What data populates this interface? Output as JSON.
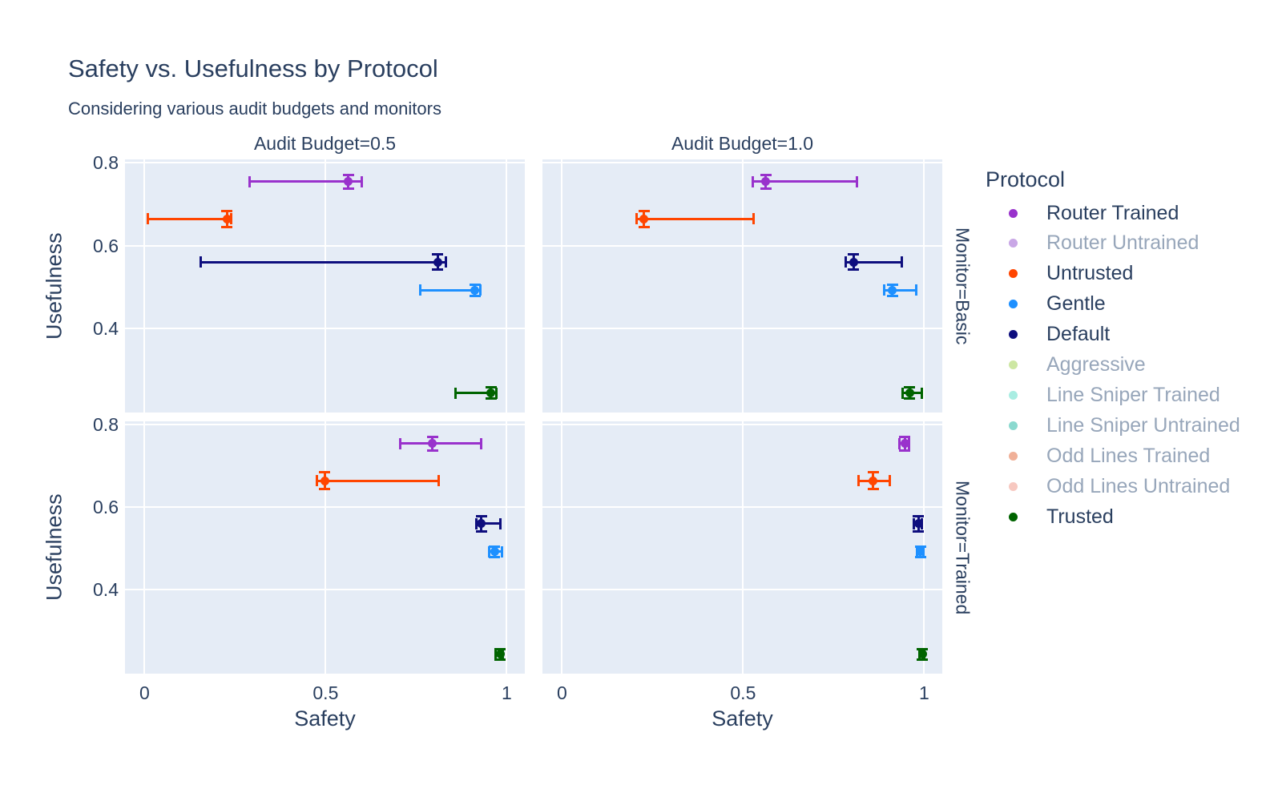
{
  "title": "Safety vs. Usefulness by Protocol",
  "subtitle": "Considering various audit budgets and monitors",
  "facets": {
    "col_titles": [
      "Audit Budget=0.5",
      "Audit Budget=1.0"
    ],
    "row_titles": [
      "Monitor=Basic",
      "Monitor=Trained"
    ]
  },
  "axes": {
    "x_title": "Safety",
    "y_title": "Usefulness",
    "x_ticks": [
      {
        "label": "0",
        "value": 0
      },
      {
        "label": "0.5",
        "value": 0.5
      },
      {
        "label": "1",
        "value": 1
      }
    ],
    "y_ticks": [
      {
        "label": "0.8",
        "value": 0.8
      },
      {
        "label": "0.6",
        "value": 0.6
      },
      {
        "label": "0.4",
        "value": 0.4
      }
    ],
    "x_range": [
      -0.054,
      1.05
    ],
    "y_range": [
      0.197,
      0.808
    ],
    "grid": "on"
  },
  "colors": {
    "plot_background": "#E5ECF6",
    "gridline": "#FFFFFF",
    "font": "#2a3f5f",
    "muted_text": "#97a6ba"
  },
  "legend": {
    "title": "Protocol",
    "position": "right",
    "items": [
      {
        "label": "Router Trained",
        "color": "#9932CC",
        "muted": false
      },
      {
        "label": "Router Untrained",
        "color": "#C9A7E6",
        "muted": true
      },
      {
        "label": "Untrusted",
        "color": "#FF4500",
        "muted": false
      },
      {
        "label": "Gentle",
        "color": "#1E90FF",
        "muted": false
      },
      {
        "label": "Default",
        "color": "#0E0E7E",
        "muted": false
      },
      {
        "label": "Aggressive",
        "color": "#CDE7A3",
        "muted": true
      },
      {
        "label": "Line Sniper Trained",
        "color": "#A9EDE2",
        "muted": true
      },
      {
        "label": "Line Sniper Untrained",
        "color": "#8BD9CF",
        "muted": true
      },
      {
        "label": "Odd Lines Trained",
        "color": "#F0B098",
        "muted": true
      },
      {
        "label": "Odd Lines Untrained",
        "color": "#F7C8C0",
        "muted": true
      },
      {
        "label": "Trusted",
        "color": "#006400",
        "muted": false
      }
    ]
  },
  "chart_data": {
    "type": "scatter",
    "marker": "circle-with-xy-error-bars",
    "x_axis": "Safety",
    "y_axis": "Usefulness",
    "panels": [
      {
        "audit_budget": "0.5",
        "monitor": "Basic",
        "points": [
          {
            "protocol": "Router Trained",
            "x": 0.563,
            "y": 0.754,
            "x_min": 0.289,
            "x_max": 0.599,
            "y_err": 0.016
          },
          {
            "protocol": "Untrusted",
            "x": 0.228,
            "y": 0.664,
            "x_min": 0.009,
            "x_max": 0.239,
            "y_err": 0.02
          },
          {
            "protocol": "Default",
            "x": 0.809,
            "y": 0.56,
            "x_min": 0.154,
            "x_max": 0.832,
            "y_err": 0.018
          },
          {
            "protocol": "Gentle",
            "x": 0.912,
            "y": 0.492,
            "x_min": 0.761,
            "x_max": 0.928,
            "y_err": 0.013
          },
          {
            "protocol": "Trusted",
            "x": 0.956,
            "y": 0.244,
            "x_min": 0.859,
            "x_max": 0.972,
            "y_err": 0.013
          }
        ]
      },
      {
        "audit_budget": "1.0",
        "monitor": "Basic",
        "points": [
          {
            "protocol": "Router Trained",
            "x": 0.563,
            "y": 0.754,
            "x_min": 0.527,
            "x_max": 0.814,
            "y_err": 0.016
          },
          {
            "protocol": "Untrusted",
            "x": 0.226,
            "y": 0.664,
            "x_min": 0.207,
            "x_max": 0.528,
            "y_err": 0.02
          },
          {
            "protocol": "Default",
            "x": 0.805,
            "y": 0.56,
            "x_min": 0.783,
            "x_max": 0.938,
            "y_err": 0.018
          },
          {
            "protocol": "Gentle",
            "x": 0.912,
            "y": 0.492,
            "x_min": 0.89,
            "x_max": 0.978,
            "y_err": 0.013
          },
          {
            "protocol": "Trusted",
            "x": 0.96,
            "y": 0.244,
            "x_min": 0.941,
            "x_max": 0.993,
            "y_err": 0.013
          }
        ]
      },
      {
        "audit_budget": "0.5",
        "monitor": "Trained",
        "points": [
          {
            "protocol": "Router Trained",
            "x": 0.795,
            "y": 0.754,
            "x_min": 0.706,
            "x_max": 0.93,
            "y_err": 0.016
          },
          {
            "protocol": "Untrusted",
            "x": 0.497,
            "y": 0.664,
            "x_min": 0.476,
            "x_max": 0.813,
            "y_err": 0.02
          },
          {
            "protocol": "Default",
            "x": 0.93,
            "y": 0.56,
            "x_min": 0.917,
            "x_max": 0.982,
            "y_err": 0.018
          },
          {
            "protocol": "Gentle",
            "x": 0.967,
            "y": 0.492,
            "x_min": 0.951,
            "x_max": 0.987,
            "y_err": 0.013
          },
          {
            "protocol": "Trusted",
            "x": 0.982,
            "y": 0.244,
            "x_min": 0.97,
            "x_max": 0.99,
            "y_err": 0.013
          }
        ]
      },
      {
        "audit_budget": "1.0",
        "monitor": "Trained",
        "points": [
          {
            "protocol": "Router Trained",
            "x": 0.947,
            "y": 0.754,
            "x_min": 0.932,
            "x_max": 0.958,
            "y_err": 0.016
          },
          {
            "protocol": "Untrusted",
            "x": 0.859,
            "y": 0.664,
            "x_min": 0.818,
            "x_max": 0.905,
            "y_err": 0.02
          },
          {
            "protocol": "Default",
            "x": 0.984,
            "y": 0.56,
            "x_min": 0.972,
            "x_max": 0.993,
            "y_err": 0.018
          },
          {
            "protocol": "Gentle",
            "x": 0.99,
            "y": 0.492,
            "x_min": 0.98,
            "x_max": 0.998,
            "y_err": 0.013
          },
          {
            "protocol": "Trusted",
            "x": 0.995,
            "y": 0.244,
            "x_min": 0.987,
            "x_max": 1.0,
            "y_err": 0.013
          }
        ]
      }
    ]
  }
}
